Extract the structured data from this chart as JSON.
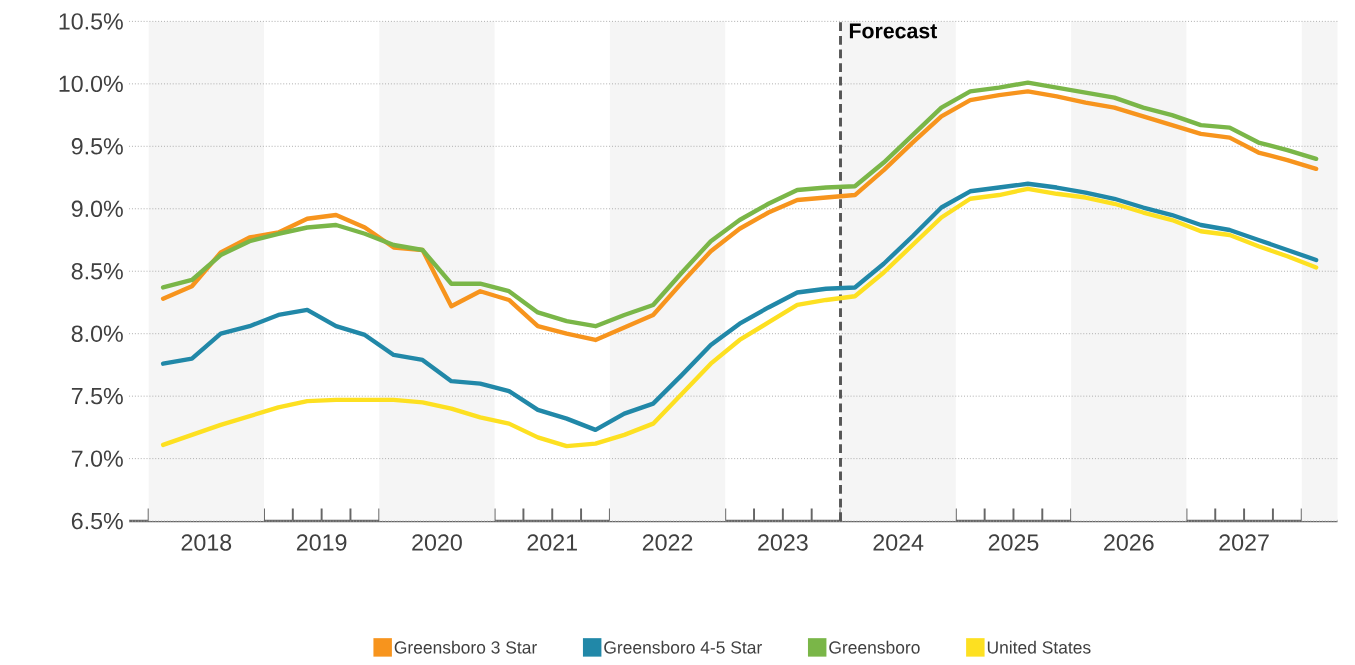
{
  "chart_data": {
    "type": "line",
    "legend": "bottom",
    "grid": "y",
    "x": [
      2018.125,
      2018.375,
      2018.625,
      2018.875,
      2019.125,
      2019.375,
      2019.625,
      2019.875,
      2020.125,
      2020.375,
      2020.625,
      2020.875,
      2021.125,
      2021.375,
      2021.625,
      2021.875,
      2022.125,
      2022.375,
      2022.625,
      2022.875,
      2023.125,
      2023.375,
      2023.625,
      2023.875,
      2024.125,
      2024.375,
      2024.625,
      2024.875,
      2025.125,
      2025.375,
      2025.625,
      2025.875,
      2026.125,
      2026.375,
      2026.625,
      2026.875,
      2027.125,
      2027.375,
      2027.625,
      2027.875,
      2028.125
    ],
    "xlim": [
      2017.83,
      2028.31
    ],
    "xticks": [
      {
        "value": 2018,
        "label": null
      },
      {
        "value": 2018.25,
        "label": null
      },
      {
        "value": 2018.5,
        "label": "2018"
      },
      {
        "value": 2018.75,
        "label": null
      },
      {
        "value": 2019,
        "label": null
      },
      {
        "value": 2019.25,
        "label": null
      },
      {
        "value": 2019.5,
        "label": "2019"
      },
      {
        "value": 2019.75,
        "label": null
      },
      {
        "value": 2020,
        "label": null
      },
      {
        "value": 2020.25,
        "label": null
      },
      {
        "value": 2020.5,
        "label": "2020"
      },
      {
        "value": 2020.75,
        "label": null
      },
      {
        "value": 2021,
        "label": null
      },
      {
        "value": 2021.25,
        "label": null
      },
      {
        "value": 2021.5,
        "label": "2021"
      },
      {
        "value": 2021.75,
        "label": null
      },
      {
        "value": 2022,
        "label": null
      },
      {
        "value": 2022.25,
        "label": null
      },
      {
        "value": 2022.5,
        "label": "2022"
      },
      {
        "value": 2022.75,
        "label": null
      },
      {
        "value": 2023,
        "label": null
      },
      {
        "value": 2023.25,
        "label": null
      },
      {
        "value": 2023.5,
        "label": "2023"
      },
      {
        "value": 2023.75,
        "label": null
      },
      {
        "value": 2024,
        "label": null
      },
      {
        "value": 2024.25,
        "label": null
      },
      {
        "value": 2024.5,
        "label": "2024"
      },
      {
        "value": 2024.75,
        "label": null
      },
      {
        "value": 2025,
        "label": null
      },
      {
        "value": 2025.25,
        "label": null
      },
      {
        "value": 2025.5,
        "label": "2025"
      },
      {
        "value": 2025.75,
        "label": null
      },
      {
        "value": 2026,
        "label": null
      },
      {
        "value": 2026.25,
        "label": null
      },
      {
        "value": 2026.5,
        "label": "2026"
      },
      {
        "value": 2026.75,
        "label": null
      },
      {
        "value": 2027,
        "label": null
      },
      {
        "value": 2027.25,
        "label": null
      },
      {
        "value": 2027.5,
        "label": "2027"
      },
      {
        "value": 2027.75,
        "label": null
      },
      {
        "value": 2028,
        "label": null
      }
    ],
    "ylim": [
      6.5,
      10.5
    ],
    "yticks": [
      {
        "value": 6.5,
        "label": "6.5%"
      },
      {
        "value": 7.0,
        "label": "7.0%"
      },
      {
        "value": 7.5,
        "label": "7.5%"
      },
      {
        "value": 8.0,
        "label": "8.0%"
      },
      {
        "value": 8.5,
        "label": "8.5%"
      },
      {
        "value": 9.0,
        "label": "9.0%"
      },
      {
        "value": 9.5,
        "label": "9.5%"
      },
      {
        "value": 10.0,
        "label": "10.0%"
      },
      {
        "value": 10.5,
        "label": "10.5%"
      }
    ],
    "bands": [
      {
        "axis": "x",
        "from": 2018,
        "to": 2019,
        "color": "#f5f5f5"
      },
      {
        "axis": "x",
        "from": 2020,
        "to": 2021,
        "color": "#f5f5f5"
      },
      {
        "axis": "x",
        "from": 2022,
        "to": 2023,
        "color": "#f5f5f5"
      },
      {
        "axis": "x",
        "from": 2024,
        "to": 2025,
        "color": "#f5f5f5"
      },
      {
        "axis": "x",
        "from": 2026,
        "to": 2027,
        "color": "#f5f5f5"
      },
      {
        "axis": "x",
        "from": 2028,
        "to": 2028.31,
        "color": "#f5f5f5"
      }
    ],
    "ref_lines": [
      {
        "axis": "x",
        "value": 2024,
        "label": "Forecast",
        "color": "#555555",
        "line_style": "dashed"
      }
    ],
    "series": [
      {
        "name": "Greensboro 3 Star",
        "color": "#f7941d",
        "values": [
          8.28,
          8.38,
          8.65,
          8.77,
          8.81,
          8.92,
          8.95,
          8.85,
          8.69,
          8.67,
          8.22,
          8.34,
          8.27,
          8.06,
          8.0,
          7.95,
          8.05,
          8.15,
          8.41,
          8.66,
          8.84,
          8.97,
          9.07,
          9.09,
          9.11,
          9.31,
          9.53,
          9.74,
          9.87,
          9.91,
          9.94,
          9.9,
          9.85,
          9.81,
          9.74,
          9.67,
          9.6,
          9.57,
          9.45,
          9.39,
          9.32
        ]
      },
      {
        "name": "Greensboro 4-5 Star",
        "color": "#2188a8",
        "values": [
          7.76,
          7.8,
          8.0,
          8.06,
          8.15,
          8.19,
          8.06,
          7.99,
          7.83,
          7.79,
          7.62,
          7.6,
          7.54,
          7.39,
          7.32,
          7.23,
          7.36,
          7.44,
          7.67,
          7.91,
          8.08,
          8.21,
          8.33,
          8.36,
          8.37,
          8.56,
          8.78,
          9.01,
          9.14,
          9.17,
          9.2,
          9.17,
          9.13,
          9.08,
          9.01,
          8.95,
          8.87,
          8.83,
          8.75,
          8.67,
          8.59
        ]
      },
      {
        "name": "Greensboro",
        "color": "#7ab648",
        "values": [
          8.37,
          8.43,
          8.63,
          8.74,
          8.8,
          8.85,
          8.87,
          8.8,
          8.71,
          8.67,
          8.4,
          8.4,
          8.34,
          8.17,
          8.1,
          8.06,
          8.15,
          8.23,
          8.49,
          8.74,
          8.91,
          9.04,
          9.15,
          9.17,
          9.18,
          9.37,
          9.59,
          9.81,
          9.94,
          9.97,
          10.01,
          9.97,
          9.93,
          9.89,
          9.81,
          9.75,
          9.67,
          9.65,
          9.53,
          9.47,
          9.4
        ]
      },
      {
        "name": "United States",
        "color": "#fde021",
        "values": [
          7.11,
          7.19,
          7.27,
          7.34,
          7.41,
          7.46,
          7.47,
          7.47,
          7.47,
          7.45,
          7.4,
          7.33,
          7.28,
          7.17,
          7.1,
          7.12,
          7.19,
          7.28,
          7.52,
          7.76,
          7.95,
          8.09,
          8.23,
          8.27,
          8.3,
          8.49,
          8.71,
          8.93,
          9.08,
          9.11,
          9.16,
          9.12,
          9.09,
          9.04,
          8.97,
          8.91,
          8.82,
          8.79,
          8.7,
          8.62,
          8.53
        ]
      }
    ]
  }
}
